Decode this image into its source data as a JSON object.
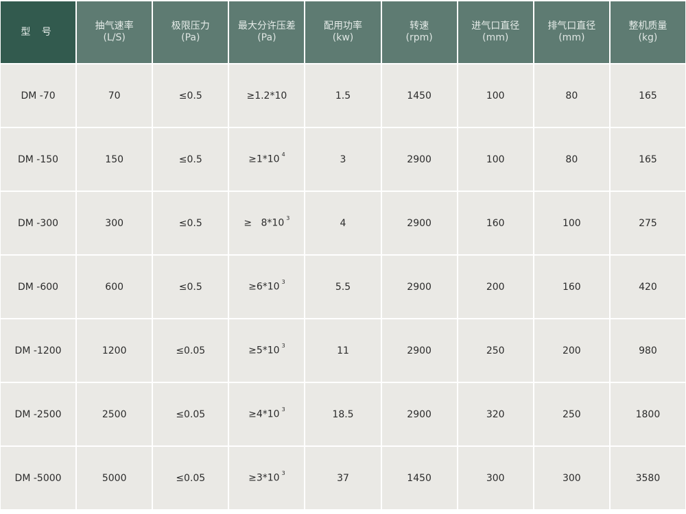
{
  "header": [
    {
      "label": "型 号",
      "unit": ""
    },
    {
      "label": "抽气速率",
      "unit": "(L/S)"
    },
    {
      "label": "极限压力",
      "unit": "(Pa)"
    },
    {
      "label": "最大分许压差",
      "unit": "(Pa)"
    },
    {
      "label": "配用功率",
      "unit": "(kw)"
    },
    {
      "label": "转速",
      "unit": "(rpm)"
    },
    {
      "label": "进气口直径",
      "unit": "(mm)"
    },
    {
      "label": "排气口直径",
      "unit": "(mm)"
    },
    {
      "label": "整机质量",
      "unit": "(kg)"
    }
  ],
  "rows": [
    [
      "DM -70",
      "70",
      "≤0.5",
      {
        "base": "≥1.2*10",
        "sup": ""
      },
      "1.5",
      "1450",
      "100",
      "80",
      "165"
    ],
    [
      "DM -150",
      "150",
      "≤0.5",
      {
        "base": "≥1*10",
        "sup": "4"
      },
      "3",
      "2900",
      "100",
      "80",
      "165"
    ],
    [
      "DM -300",
      "300",
      "≤0.5",
      {
        "base": "≥   8*10",
        "sup": "3"
      },
      "4",
      "2900",
      "160",
      "100",
      "275"
    ],
    [
      "DM -600",
      "600",
      "≤0.5",
      {
        "base": "≥6*10",
        "sup": "3"
      },
      "5.5",
      "2900",
      "200",
      "160",
      "420"
    ],
    [
      "DM -1200",
      "1200",
      "≤0.05",
      {
        "base": "≥5*10",
        "sup": "3"
      },
      "11",
      "2900",
      "250",
      "200",
      "980"
    ],
    [
      "DM -2500",
      "2500",
      "≤0.05",
      {
        "base": "≥4*10",
        "sup": "3"
      },
      "18.5",
      "2900",
      "320",
      "250",
      "1800"
    ],
    [
      "DM -5000",
      "5000",
      "≤0.05",
      {
        "base": "≥3*10",
        "sup": "3"
      },
      "37",
      "1450",
      "300",
      "300",
      "3580"
    ]
  ],
  "colors": {
    "header_first": "#325a4e",
    "header": "#5e7b72",
    "cell": "#eae9e5",
    "grid": "#ffffff"
  }
}
